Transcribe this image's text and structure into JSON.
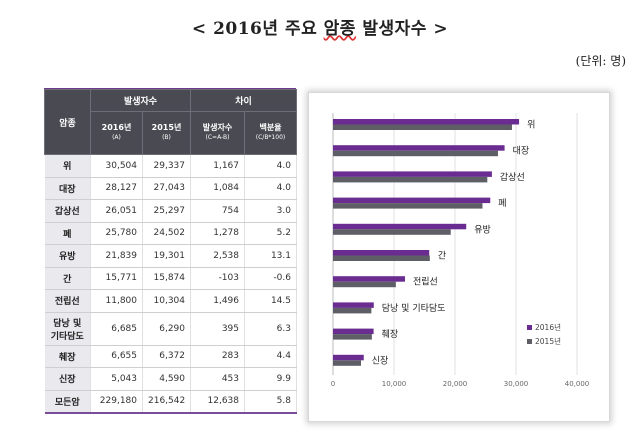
{
  "page": {
    "title_prefix": "< 2016년 주요 ",
    "title_underlined": "암종",
    "title_suffix": " 발생자수 >",
    "unit": "(단위: 명)"
  },
  "table": {
    "header_cancer": "암종",
    "header_group_count": "발생자수",
    "header_group_diff": "차이",
    "col_2016": "2016년",
    "col_2016_sub": "(A)",
    "col_2015": "2015년",
    "col_2015_sub": "(B)",
    "col_diff": "발생자수",
    "col_diff_sub": "(C=A-B)",
    "col_pct": "백분율",
    "col_pct_sub": "(C/B*100)",
    "rows": [
      {
        "name": "위",
        "y2016": "30,504",
        "y2015": "29,337",
        "diff": "1,167",
        "pct": "4.0"
      },
      {
        "name": "대장",
        "y2016": "28,127",
        "y2015": "27,043",
        "diff": "1,084",
        "pct": "4.0"
      },
      {
        "name": "갑상선",
        "y2016": "26,051",
        "y2015": "25,297",
        "diff": "754",
        "pct": "3.0"
      },
      {
        "name": "폐",
        "y2016": "25,780",
        "y2015": "24,502",
        "diff": "1,278",
        "pct": "5.2"
      },
      {
        "name": "유방",
        "y2016": "21,839",
        "y2015": "19,301",
        "diff": "2,538",
        "pct": "13.1"
      },
      {
        "name": "간",
        "y2016": "15,771",
        "y2015": "15,874",
        "diff": "-103",
        "pct": "-0.6"
      },
      {
        "name": "전립선",
        "y2016": "11,800",
        "y2015": "10,304",
        "diff": "1,496",
        "pct": "14.5"
      },
      {
        "name": "담낭 및\n기타담도",
        "y2016": "6,685",
        "y2015": "6,290",
        "diff": "395",
        "pct": "6.3"
      },
      {
        "name": "췌장",
        "y2016": "6,655",
        "y2015": "6,372",
        "diff": "283",
        "pct": "4.4"
      },
      {
        "name": "신장",
        "y2016": "5,043",
        "y2015": "4,590",
        "diff": "453",
        "pct": "9.9"
      },
      {
        "name": "모든암",
        "y2016": "229,180",
        "y2015": "216,542",
        "diff": "12,638",
        "pct": "5.8"
      }
    ]
  },
  "chart_data": {
    "type": "bar",
    "orientation": "horizontal",
    "categories": [
      "위",
      "대장",
      "갑상선",
      "폐",
      "유방",
      "간",
      "전립선",
      "담낭 및 기타담도",
      "췌장",
      "신장"
    ],
    "series": [
      {
        "name": "2016년",
        "color": "#6a2c91",
        "values": [
          30504,
          28127,
          26051,
          25780,
          21839,
          15771,
          11800,
          6685,
          6655,
          5043
        ]
      },
      {
        "name": "2015년",
        "color": "#5e5e66",
        "values": [
          29337,
          27043,
          25297,
          24502,
          19301,
          15874,
          10304,
          6290,
          6372,
          4590
        ]
      }
    ],
    "xlim": [
      0,
      40000
    ],
    "xticks": [
      0,
      10000,
      20000,
      30000,
      40000
    ],
    "xtick_labels": [
      "0",
      "10,000",
      "20,000",
      "30,000",
      "40,000"
    ],
    "legend_position": "bottom-right",
    "title": "",
    "xlabel": "",
    "ylabel": ""
  }
}
